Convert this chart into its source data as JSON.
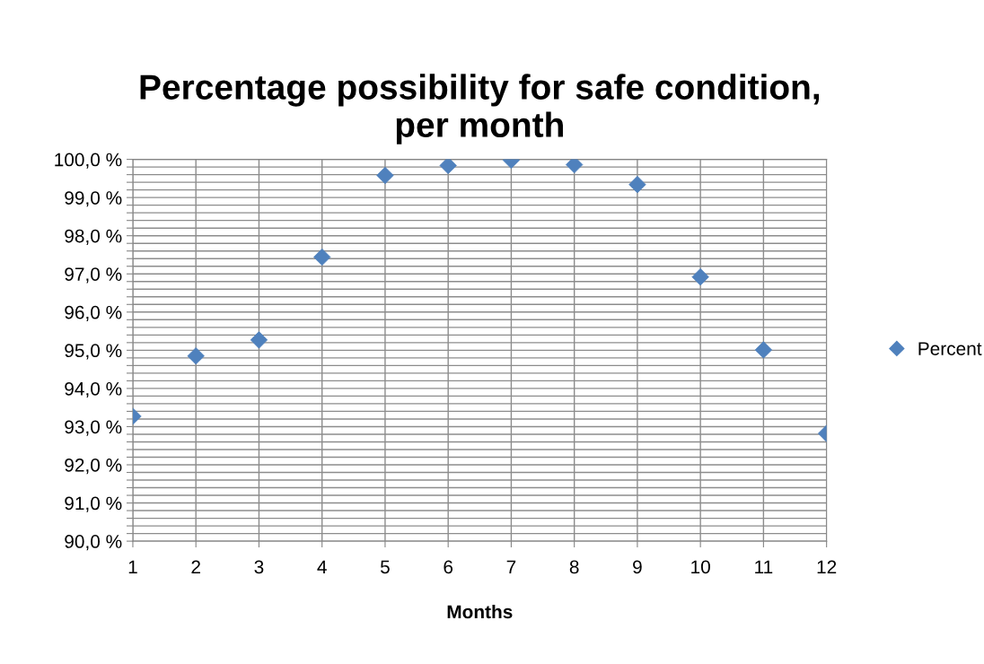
{
  "chart_data": {
    "type": "scatter",
    "title": "Percentage possibility for safe condition,\nper month",
    "xlabel": "Months",
    "x": [
      1,
      2,
      3,
      4,
      5,
      6,
      7,
      8,
      9,
      10,
      11,
      12
    ],
    "series": [
      {
        "name": "Percent",
        "color": "#4f81bd",
        "values": [
          93.27,
          94.85,
          95.27,
          97.44,
          99.58,
          99.84,
          99.98,
          99.86,
          99.34,
          96.92,
          95.01,
          92.82
        ]
      }
    ],
    "xlim": [
      1,
      12
    ],
    "xticks": [
      1,
      2,
      3,
      4,
      5,
      6,
      7,
      8,
      9,
      10,
      11,
      12
    ],
    "ylim": [
      90,
      100
    ],
    "yticks": [
      {
        "value": 90,
        "label": "90,0 %"
      },
      {
        "value": 90.2,
        "label": null
      },
      {
        "value": 90.4,
        "label": null
      },
      {
        "value": 90.6,
        "label": null
      },
      {
        "value": 90.8,
        "label": null
      },
      {
        "value": 91,
        "label": "91,0 %"
      },
      {
        "value": 91.2,
        "label": null
      },
      {
        "value": 91.4,
        "label": null
      },
      {
        "value": 91.6,
        "label": null
      },
      {
        "value": 91.8,
        "label": null
      },
      {
        "value": 92,
        "label": "92,0 %"
      },
      {
        "value": 92.2,
        "label": null
      },
      {
        "value": 92.4,
        "label": null
      },
      {
        "value": 92.6,
        "label": null
      },
      {
        "value": 92.8,
        "label": null
      },
      {
        "value": 93,
        "label": "93,0 %"
      },
      {
        "value": 93.2,
        "label": null
      },
      {
        "value": 93.4,
        "label": null
      },
      {
        "value": 93.6,
        "label": null
      },
      {
        "value": 93.8,
        "label": null
      },
      {
        "value": 94,
        "label": "94,0 %"
      },
      {
        "value": 94.2,
        "label": null
      },
      {
        "value": 94.4,
        "label": null
      },
      {
        "value": 94.6,
        "label": null
      },
      {
        "value": 94.8,
        "label": null
      },
      {
        "value": 95,
        "label": "95,0 %"
      },
      {
        "value": 95.2,
        "label": null
      },
      {
        "value": 95.4,
        "label": null
      },
      {
        "value": 95.6,
        "label": null
      },
      {
        "value": 95.8,
        "label": null
      },
      {
        "value": 96,
        "label": "96,0 %"
      },
      {
        "value": 96.2,
        "label": null
      },
      {
        "value": 96.4,
        "label": null
      },
      {
        "value": 96.6,
        "label": null
      },
      {
        "value": 96.8,
        "label": null
      },
      {
        "value": 97,
        "label": "97,0 %"
      },
      {
        "value": 97.2,
        "label": null
      },
      {
        "value": 97.4,
        "label": null
      },
      {
        "value": 97.6,
        "label": null
      },
      {
        "value": 97.8,
        "label": null
      },
      {
        "value": 98,
        "label": "98,0 %"
      },
      {
        "value": 98.2,
        "label": null
      },
      {
        "value": 98.4,
        "label": null
      },
      {
        "value": 98.6,
        "label": null
      },
      {
        "value": 98.8,
        "label": null
      },
      {
        "value": 99,
        "label": "99,0 %"
      },
      {
        "value": 99.2,
        "label": null
      },
      {
        "value": 99.4,
        "label": null
      },
      {
        "value": 99.6,
        "label": null
      },
      {
        "value": 99.8,
        "label": null
      },
      {
        "value": 100,
        "label": "100,0 %"
      }
    ],
    "grid": true,
    "legend": "right",
    "marker": "diamond"
  }
}
